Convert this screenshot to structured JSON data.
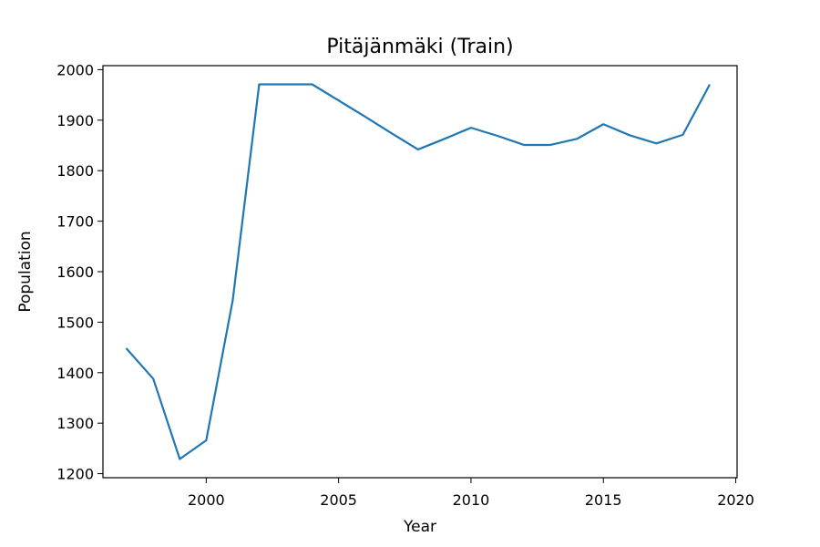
{
  "chart_data": {
    "type": "line",
    "title": "Pitäjänmäki (Train)",
    "xlabel": "Year",
    "ylabel": "Population",
    "xlim": [
      1996.1,
      2020.05
    ],
    "ylim": [
      1192,
      2008
    ],
    "x_ticks": [
      2000,
      2005,
      2010,
      2015,
      2020
    ],
    "y_ticks": [
      1200,
      1300,
      1400,
      1500,
      1600,
      1700,
      1800,
      1900,
      2000
    ],
    "grid": false,
    "series": [
      {
        "color": "#1f77b4",
        "x": [
          1997,
          1998,
          1999,
          2000,
          2001,
          2002,
          2003,
          2004,
          2005,
          2006,
          2007,
          2008,
          2009,
          2010,
          2011,
          2012,
          2013,
          2014,
          2015,
          2016,
          2017,
          2018,
          2019
        ],
        "y": [
          1447,
          1388,
          1229,
          1266,
          1543,
          1971,
          1971,
          1971,
          1939,
          1907,
          1874,
          1842,
          1863,
          1885,
          1869,
          1851,
          1851,
          1863,
          1892,
          1870,
          1854,
          1871,
          1969
        ]
      }
    ]
  }
}
